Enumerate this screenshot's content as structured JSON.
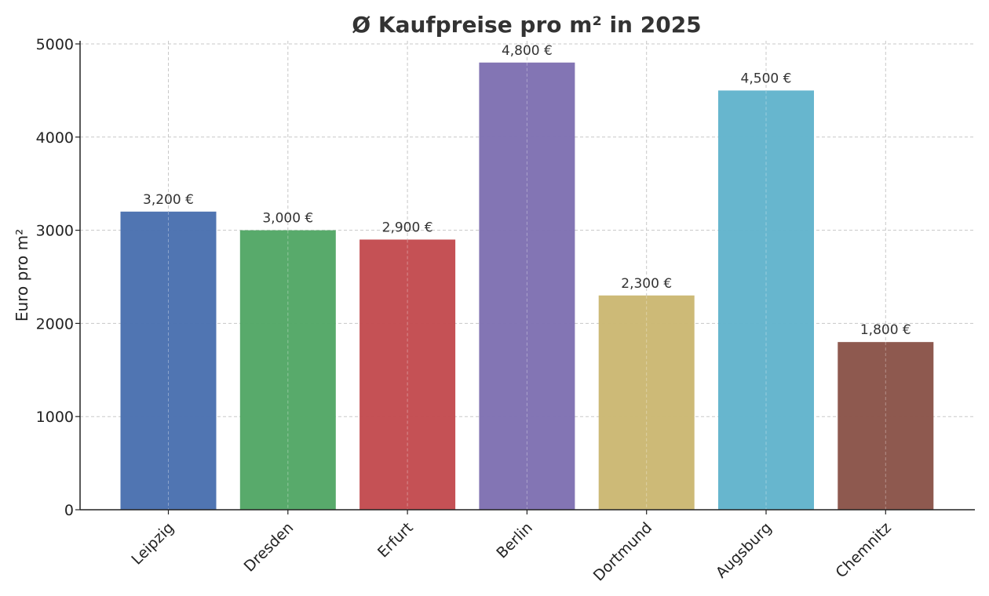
{
  "chart_data": {
    "type": "bar",
    "title": "Ø Kaufpreise pro m² in 2025",
    "xlabel": "",
    "ylabel": "Euro pro m²",
    "categories": [
      "Leipzig",
      "Dresden",
      "Erfurt",
      "Berlin",
      "Dortmund",
      "Augsburg",
      "Chemnitz"
    ],
    "values": [
      3200,
      3000,
      2900,
      4800,
      2300,
      4500,
      1800
    ],
    "value_labels": [
      "3,200 €",
      "3,000 €",
      "2,900 €",
      "4,800 €",
      "2,300 €",
      "4,500 €",
      "1,800 €"
    ],
    "colors": [
      "#4c72b0",
      "#55a868",
      "#c44e52",
      "#8172b2",
      "#ccb974",
      "#64b5cd",
      "#8c564b"
    ],
    "ylim": [
      0,
      5000
    ],
    "yticks": [
      0,
      1000,
      2000,
      3000,
      4000,
      5000
    ],
    "grid": true,
    "legend": "none"
  }
}
